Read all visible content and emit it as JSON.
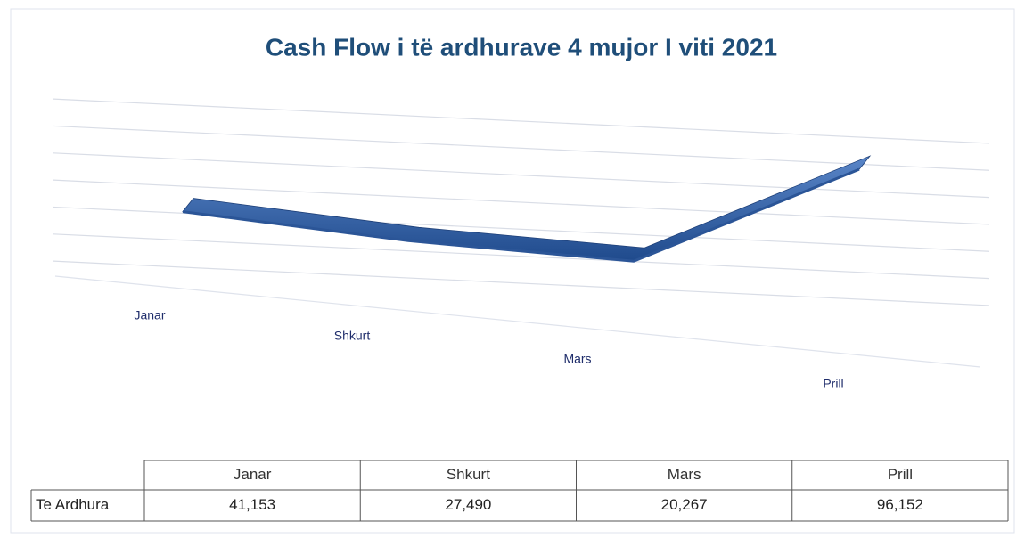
{
  "chart_data": {
    "type": "line",
    "title": "Cash Flow i të ardhurave 4 mujor I viti 2021",
    "categories": [
      "Janar",
      "Shkurt",
      "Mars",
      "Prill"
    ],
    "series": [
      {
        "name": "Te Ardhura",
        "color": "#2b5597",
        "values": [
          41153,
          27490,
          20267,
          96152
        ],
        "value_labels": [
          "41,153",
          "27,490",
          "20,267",
          "96,152"
        ]
      }
    ],
    "ylim": [
      0,
      120000
    ],
    "yticks": [
      0,
      20000,
      40000,
      60000,
      80000,
      100000,
      120000
    ],
    "grid": true
  }
}
